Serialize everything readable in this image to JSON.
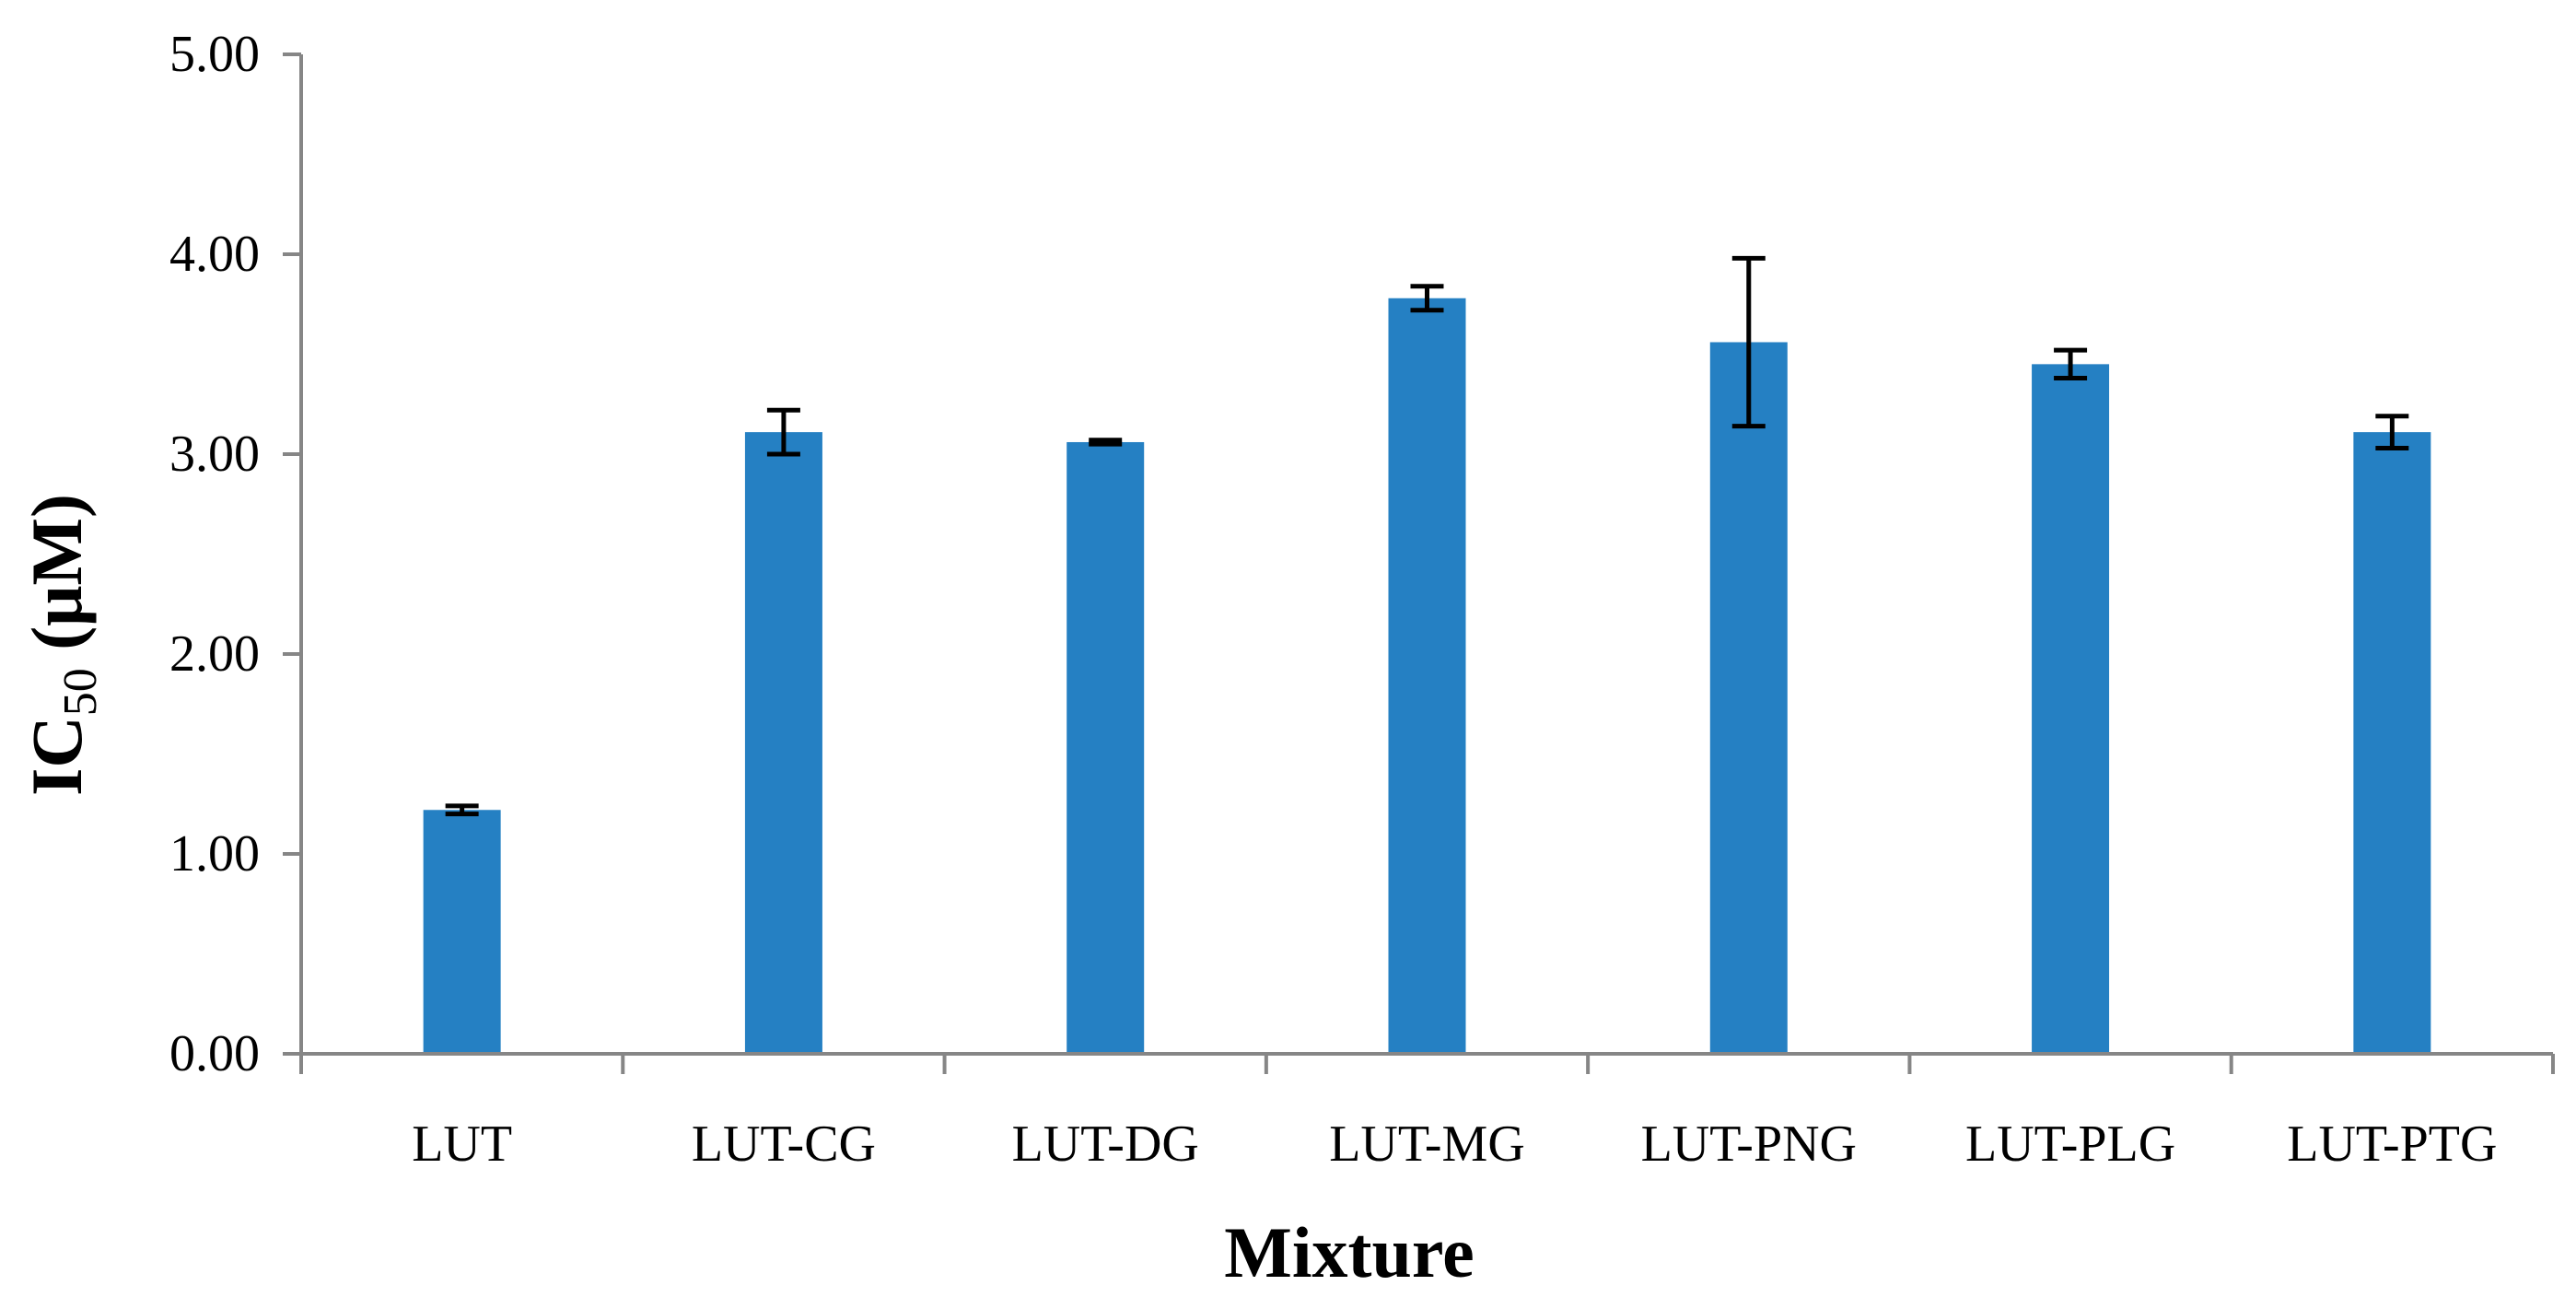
{
  "chart_data": {
    "type": "bar",
    "categories": [
      "LUT",
      "LUT-CG",
      "LUT-DG",
      "LUT-MG",
      "LUT-PNG",
      "LUT-PLG",
      "LUT-PTG"
    ],
    "series": [
      {
        "values": [
          1.22,
          3.11,
          3.06,
          3.78,
          3.56,
          3.45,
          3.11
        ],
        "errors": [
          0.02,
          0.11,
          0.01,
          0.06,
          0.42,
          0.07,
          0.08
        ]
      }
    ],
    "xlabel": "Mixture",
    "ylabel": {
      "main": "IC",
      "subscript": "50",
      "unit": " (μM)"
    },
    "ylim": [
      0,
      5
    ],
    "yticks": [
      "0.00",
      "1.00",
      "2.00",
      "3.00",
      "4.00",
      "5.00"
    ],
    "grid": false,
    "legend": "none",
    "colors": {
      "bar": "#2580C3",
      "axis": "#868686",
      "error_bar": "#000000"
    }
  }
}
